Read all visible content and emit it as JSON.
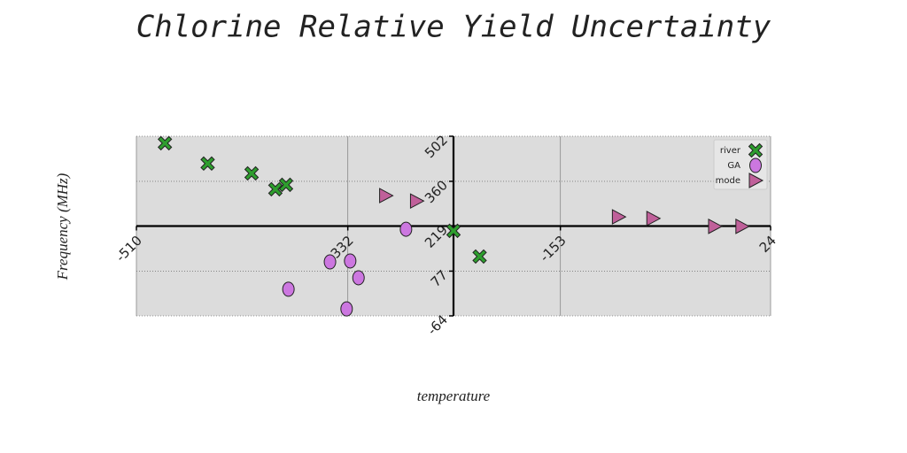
{
  "chart_data": {
    "type": "scatter",
    "title": "Chlorine Relative Yield Uncertainty",
    "xlabel": "temperature",
    "ylabel": "Frequency (MHz)",
    "xlim": [
      -510,
      24
    ],
    "xticks": [
      -510,
      -332,
      -153,
      24
    ],
    "ylim": [
      -64,
      502
    ],
    "yticks": [
      -64,
      77,
      219,
      360,
      502
    ],
    "grid": true,
    "legend": "upper right",
    "spines": "center",
    "series": [
      {
        "name": "river",
        "color": "#2e9e2e",
        "marker": "X",
        "x": [
          -486,
          -450,
          -413,
          -393,
          -384,
          -243,
          -221
        ],
        "values": [
          480,
          416,
          385,
          335,
          349,
          204,
          123
        ]
      },
      {
        "name": "GA",
        "color": "#cc77e0",
        "marker": "o",
        "x": [
          -283,
          -347,
          -330,
          -323,
          -382,
          -333
        ],
        "values": [
          209,
          106,
          109,
          56,
          20,
          -42
        ]
      },
      {
        "name": "mode",
        "color": "#c0609a",
        "marker": ">",
        "x": [
          -300,
          -274,
          -104,
          -75,
          -23,
          0
        ],
        "values": [
          315,
          298,
          248,
          243,
          218,
          218
        ]
      }
    ]
  }
}
